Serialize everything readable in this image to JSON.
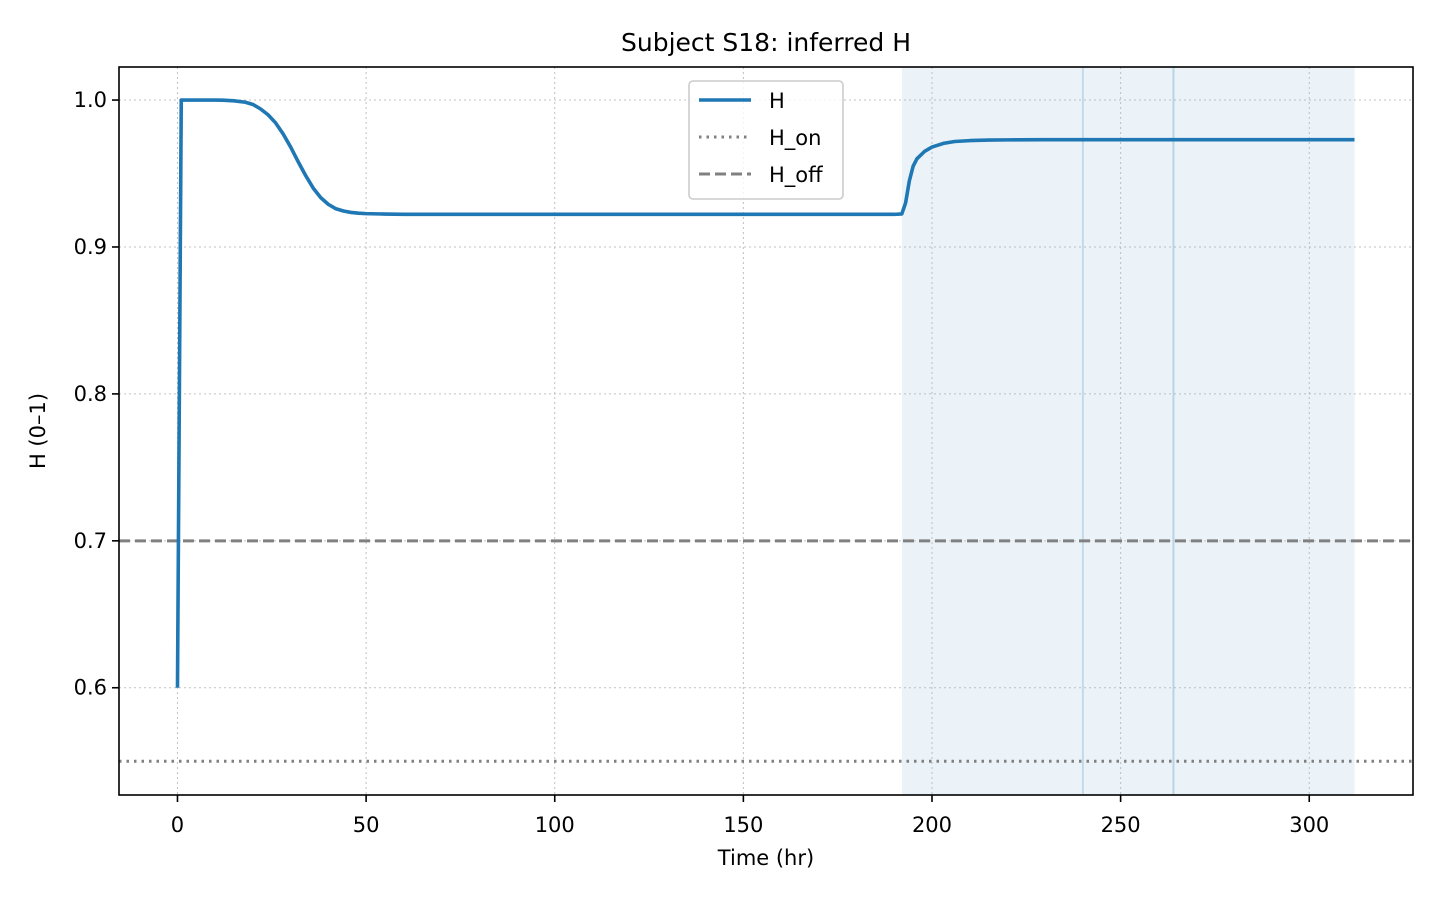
{
  "chart_data": {
    "type": "line",
    "title": "Subject S18: inferred H",
    "xlabel": "Time (hr)",
    "ylabel": "H (0–1)",
    "xlim": [
      -15.5,
      327.5
    ],
    "ylim": [
      0.527,
      1.0225
    ],
    "xticks": [
      0,
      50,
      100,
      150,
      200,
      250,
      300
    ],
    "yticks": [
      0.6,
      0.7,
      0.8,
      0.9,
      1.0
    ],
    "ytick_labels": [
      "0.6",
      "0.7",
      "0.8",
      "0.9",
      "1.0"
    ],
    "grid": true,
    "legend_position": "top-center",
    "series": [
      {
        "name": "H",
        "color": "#1f77b4",
        "style": "solid",
        "x": [
          0,
          1,
          2,
          5,
          8,
          10,
          12,
          15,
          18,
          20,
          22,
          24,
          26,
          28,
          30,
          32,
          34,
          36,
          38,
          40,
          42,
          44,
          46,
          48,
          50,
          55,
          60,
          70,
          100,
          150,
          190,
          192,
          193,
          194,
          195,
          196,
          198,
          200,
          203,
          206,
          210,
          215,
          220,
          230,
          240,
          260,
          280,
          300,
          312
        ],
        "y": [
          0.6,
          1.0,
          1.0,
          1.0,
          1.0,
          1.0,
          0.9999,
          0.9995,
          0.9985,
          0.997,
          0.994,
          0.99,
          0.9845,
          0.977,
          0.968,
          0.958,
          0.9485,
          0.94,
          0.9335,
          0.929,
          0.926,
          0.9245,
          0.9235,
          0.923,
          0.9227,
          0.9224,
          0.9222,
          0.9222,
          0.9222,
          0.9222,
          0.9222,
          0.9225,
          0.93,
          0.945,
          0.955,
          0.96,
          0.965,
          0.968,
          0.9705,
          0.9718,
          0.9724,
          0.9728,
          0.9729,
          0.973,
          0.973,
          0.973,
          0.973,
          0.973,
          0.973
        ]
      },
      {
        "name": "H_on",
        "color": "#808080",
        "style": "dotted",
        "y_constant": 0.55
      },
      {
        "name": "H_off",
        "color": "#808080",
        "style": "dashed",
        "y_constant": 0.7
      }
    ],
    "shaded_regions": [
      {
        "x_start": 192,
        "x_end": 312,
        "color": "#1f77b4",
        "opacity": 0.09
      }
    ],
    "vertical_lines": [
      {
        "x": 240,
        "color": "#1f77b4",
        "opacity": 0.2
      },
      {
        "x": 264,
        "color": "#1f77b4",
        "opacity": 0.25
      }
    ]
  }
}
